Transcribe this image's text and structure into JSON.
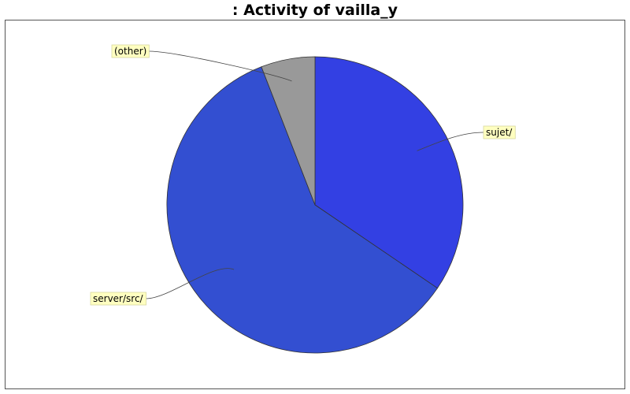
{
  "chart_data": {
    "type": "pie",
    "title": ": Activity of vailla_y",
    "slices": [
      {
        "label": "sujet/",
        "value": 34.5,
        "color": "#3340e3"
      },
      {
        "label": "server/src/",
        "value": 59.6,
        "color": "#334fd1"
      },
      {
        "label": "(other)",
        "value": 5.9,
        "color": "#999999"
      }
    ],
    "start_angle": "12 o'clock",
    "direction": "clockwise",
    "label_style": "callout boxes with leader lines",
    "label_box_color": "#ffffc0"
  }
}
